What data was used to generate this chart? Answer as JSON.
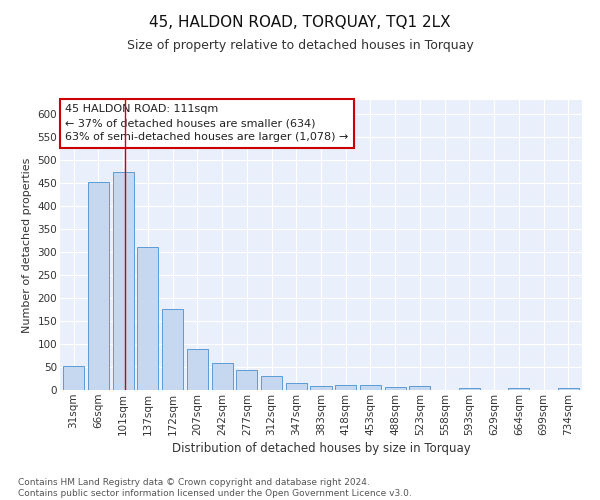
{
  "title": "45, HALDON ROAD, TORQUAY, TQ1 2LX",
  "subtitle": "Size of property relative to detached houses in Torquay",
  "xlabel": "Distribution of detached houses by size in Torquay",
  "ylabel": "Number of detached properties",
  "categories": [
    "31sqm",
    "66sqm",
    "101sqm",
    "137sqm",
    "172sqm",
    "207sqm",
    "242sqm",
    "277sqm",
    "312sqm",
    "347sqm",
    "383sqm",
    "418sqm",
    "453sqm",
    "488sqm",
    "523sqm",
    "558sqm",
    "593sqm",
    "629sqm",
    "664sqm",
    "699sqm",
    "734sqm"
  ],
  "values": [
    53,
    452,
    473,
    311,
    175,
    88,
    58,
    43,
    30,
    15,
    9,
    10,
    10,
    7,
    9,
    1,
    5,
    1,
    5,
    1,
    5
  ],
  "bar_color": "#c5d8f0",
  "bar_edge_color": "#5b9bd5",
  "vline_index": 2,
  "vline_color": "#cc0000",
  "annotation_text": "45 HALDON ROAD: 111sqm\n← 37% of detached houses are smaller (634)\n63% of semi-detached houses are larger (1,078) →",
  "annotation_box_color": "#ffffff",
  "annotation_box_edge": "#cc0000",
  "ylim": [
    0,
    630
  ],
  "yticks": [
    0,
    50,
    100,
    150,
    200,
    250,
    300,
    350,
    400,
    450,
    500,
    550,
    600
  ],
  "bg_color": "#eaf0fb",
  "footer_text": "Contains HM Land Registry data © Crown copyright and database right 2024.\nContains public sector information licensed under the Open Government Licence v3.0.",
  "title_fontsize": 11,
  "subtitle_fontsize": 9,
  "xlabel_fontsize": 8.5,
  "ylabel_fontsize": 8,
  "tick_fontsize": 7.5,
  "annotation_fontsize": 8,
  "footer_fontsize": 6.5
}
